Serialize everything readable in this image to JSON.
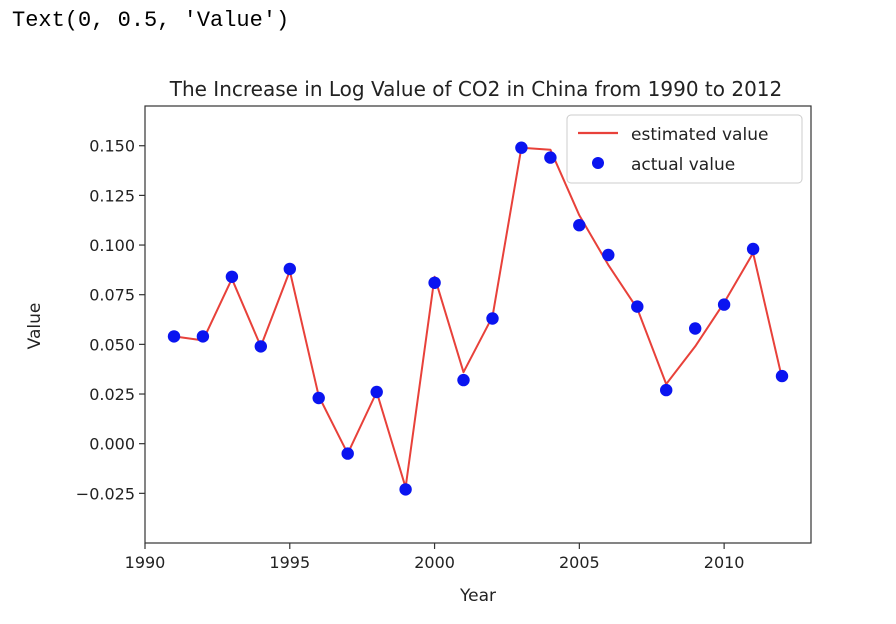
{
  "repl_output": "Text(0, 0.5, 'Value')",
  "chart_data": {
    "type": "line",
    "title": "The Increase in Log Value of CO2 in China from 1990 to 2012",
    "xlabel": "Year",
    "ylabel": "Value",
    "xlim": [
      1990,
      2013
    ],
    "ylim": [
      -0.05,
      0.17
    ],
    "x_ticks": [
      1990,
      1995,
      2000,
      2005,
      2010
    ],
    "y_ticks": [
      -0.025,
      0.0,
      0.025,
      0.05,
      0.075,
      0.1,
      0.125,
      0.15
    ],
    "x_tick_labels": [
      "1990",
      "1995",
      "2000",
      "2005",
      "2010"
    ],
    "y_tick_labels": [
      "−0.025",
      "0.000",
      "0.025",
      "0.050",
      "0.075",
      "0.100",
      "0.125",
      "0.150"
    ],
    "legend_position": "top-right",
    "grid": false,
    "series": [
      {
        "name": "estimated value",
        "kind": "line",
        "color": "#e8413a",
        "x": [
          1991,
          1992,
          1993,
          1994,
          1995,
          1996,
          1997,
          1998,
          1999,
          2000,
          2001,
          2002,
          2003,
          2004,
          2005,
          2006,
          2007,
          2008,
          2009,
          2010,
          2011,
          2012
        ],
        "y": [
          0.054,
          0.052,
          0.083,
          0.049,
          0.087,
          0.024,
          -0.005,
          0.026,
          -0.022,
          0.084,
          0.036,
          0.064,
          0.149,
          0.148,
          0.115,
          0.09,
          0.068,
          0.03,
          0.049,
          0.071,
          0.096,
          0.033
        ]
      },
      {
        "name": "actual value",
        "kind": "scatter",
        "color": "#0a14f0",
        "x": [
          1991,
          1992,
          1993,
          1994,
          1995,
          1996,
          1997,
          1998,
          1999,
          2000,
          2001,
          2002,
          2003,
          2004,
          2005,
          2006,
          2007,
          2008,
          2009,
          2010,
          2011,
          2012
        ],
        "y": [
          0.054,
          0.054,
          0.084,
          0.049,
          0.088,
          0.023,
          -0.005,
          0.026,
          -0.023,
          0.081,
          0.032,
          0.063,
          0.149,
          0.144,
          0.11,
          0.095,
          0.069,
          0.027,
          0.058,
          0.07,
          0.098,
          0.034
        ]
      }
    ]
  }
}
